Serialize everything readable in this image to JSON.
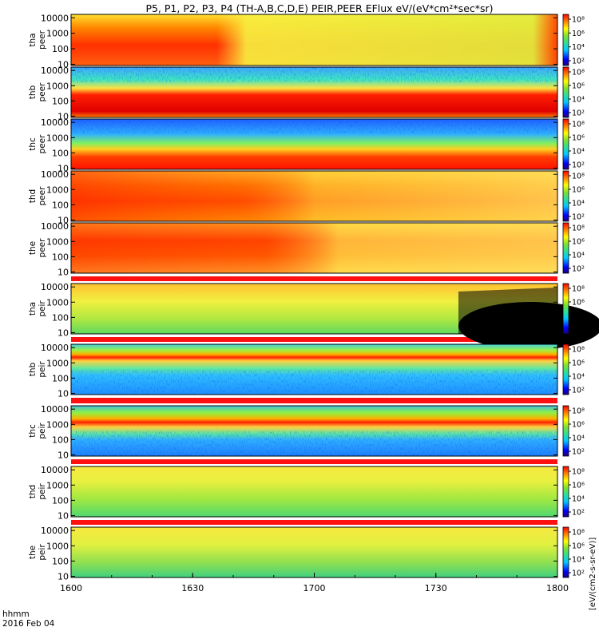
{
  "chart_data": {
    "type": "heatmap",
    "title": "P5, P1, P2, P3, P4 (TH-A,B,C,D,E) PEIR,PEER EFlux eV/(eV*cm²*sec*sr)",
    "xlabel_line1": "hhmm",
    "xlabel_line2": "2016 Feb 04",
    "x_ticks": [
      "1600",
      "1630",
      "1700",
      "1730",
      "1800"
    ],
    "x_range": [
      "1600",
      "1800"
    ],
    "y_scale": "log",
    "y_ticks": [
      "10",
      "100",
      "1000",
      "10000"
    ],
    "colorbar_ticks": [
      "10²",
      "10⁴",
      "10⁶",
      "10⁸"
    ],
    "colorbar_title": "[eV/(cm2-s-sr-eV)]",
    "panels": [
      {
        "probe": "tha",
        "species": "peer"
      },
      {
        "probe": "thb",
        "species": "peer"
      },
      {
        "probe": "thc",
        "species": "peer"
      },
      {
        "probe": "thd",
        "species": "peer"
      },
      {
        "probe": "the",
        "species": "peer"
      },
      {
        "probe": "tha",
        "species": "peir"
      },
      {
        "probe": "thb",
        "species": "peir"
      },
      {
        "probe": "thc",
        "species": "peir"
      },
      {
        "probe": "thd",
        "species": "peir"
      },
      {
        "probe": "the",
        "species": "peir"
      }
    ]
  }
}
